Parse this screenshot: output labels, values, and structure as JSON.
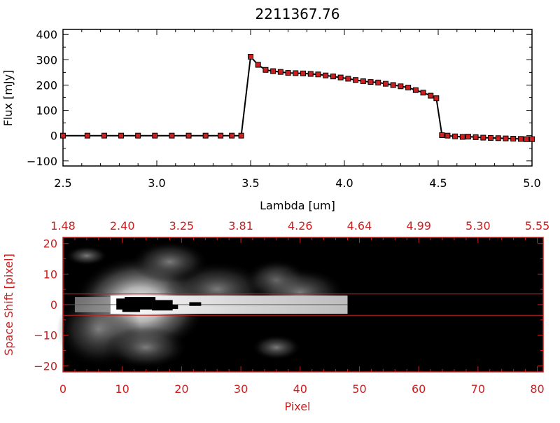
{
  "chart_data": [
    {
      "type": "line",
      "title": "2211367.76",
      "xlabel": "Lambda [um]",
      "ylabel": "Flux [mJy]",
      "xlim": [
        2.5,
        5.0
      ],
      "ylim": [
        -120,
        420
      ],
      "xticks": [
        "2.5",
        "3.0",
        "3.5",
        "4.0",
        "4.5",
        "5.0"
      ],
      "yticks": [
        "400",
        "300",
        "200",
        "100",
        "0",
        "−100"
      ],
      "grid": false,
      "series": [
        {
          "x": [
            2.5,
            2.63,
            2.72,
            2.81,
            2.9,
            2.99,
            3.08,
            3.17,
            3.26,
            3.34,
            3.4,
            3.45,
            3.5,
            3.54,
            3.58,
            3.62,
            3.66,
            3.7,
            3.74,
            3.78,
            3.82,
            3.86,
            3.9,
            3.94,
            3.98,
            4.02,
            4.06,
            4.1,
            4.14,
            4.18,
            4.22,
            4.26,
            4.3,
            4.34,
            4.38,
            4.42,
            4.46,
            4.49,
            4.52,
            4.55,
            4.59,
            4.63,
            4.66,
            4.7,
            4.74,
            4.78,
            4.82,
            4.86,
            4.9,
            4.94,
            4.97,
            5.0
          ],
          "values": [
            0,
            0,
            0,
            0,
            0,
            0,
            0,
            0,
            0,
            0,
            0,
            0,
            312,
            280,
            260,
            255,
            252,
            248,
            247,
            246,
            244,
            242,
            238,
            234,
            230,
            225,
            220,
            215,
            212,
            210,
            205,
            200,
            195,
            190,
            180,
            170,
            158,
            148,
            2,
            0,
            -3,
            -5,
            -4,
            -6,
            -8,
            -9,
            -10,
            -11,
            -12,
            -13,
            -14,
            -14
          ]
        }
      ],
      "colors": {
        "marker": "#cc1f1f",
        "line": "#000000"
      }
    },
    {
      "type": "heatmap",
      "xlabel": "Pixel",
      "ylabel": "Space Shift [pixel]",
      "xlim": [
        0,
        81
      ],
      "ylim": [
        -22,
        22
      ],
      "xticks": [
        "0",
        "10",
        "20",
        "30",
        "40",
        "50",
        "60",
        "70",
        "80"
      ],
      "yticks": [
        "20",
        "10",
        "0",
        "−10",
        "−20"
      ],
      "top_axis_ticks": [
        "1.48",
        "2.40",
        "3.25",
        "3.81",
        "4.26",
        "4.64",
        "4.99",
        "5.30",
        "5.55"
      ],
      "extraction_rows": [
        -3.5,
        3.5
      ],
      "colors": {
        "axis": "#cc1f1f",
        "aperture": "#cc1f1f",
        "background": "#000000"
      }
    }
  ]
}
